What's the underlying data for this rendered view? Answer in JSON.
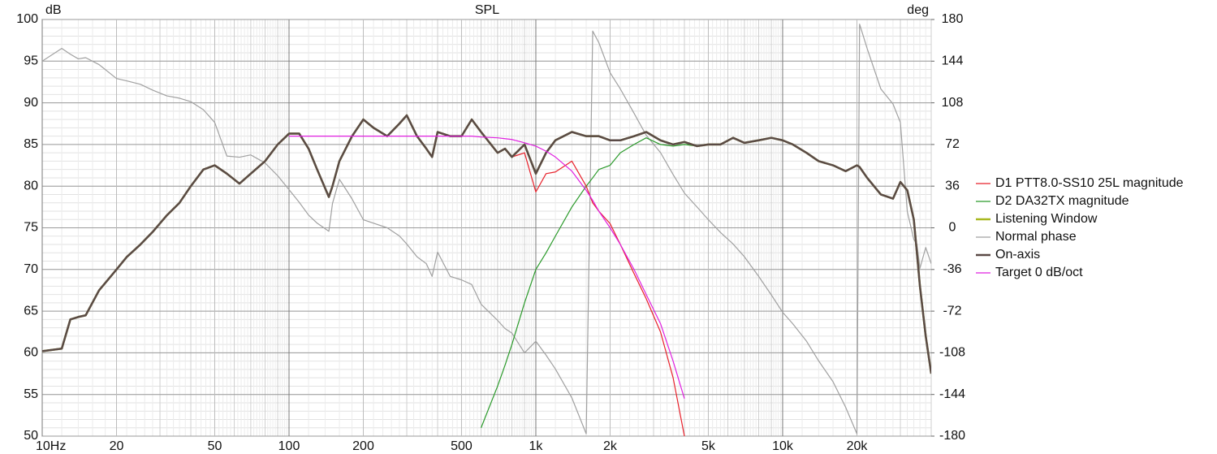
{
  "chart_data": {
    "type": "line",
    "title": "SPL",
    "y_label": "dB",
    "y2_label": "deg",
    "x_scale": "log",
    "grid": true,
    "legend": "right",
    "xlim": [
      10,
      40000
    ],
    "ylim": [
      50,
      100
    ],
    "y2lim": [
      -180,
      180
    ],
    "xticks": [
      {
        "value": 10,
        "label": "10Hz"
      },
      20,
      50,
      100,
      200,
      500,
      {
        "value": 1000,
        "label": "1k"
      },
      {
        "value": 2000,
        "label": "2k"
      },
      {
        "value": 5000,
        "label": "5k"
      },
      {
        "value": 10000,
        "label": "10k"
      },
      {
        "value": 20000,
        "label": "20k"
      }
    ],
    "yticks": [
      50,
      55,
      60,
      65,
      70,
      75,
      80,
      85,
      90,
      95,
      100
    ],
    "y2ticks": [
      -180,
      -144,
      -108,
      -72,
      -36,
      0,
      36,
      72,
      108,
      144,
      180
    ],
    "x": [
      10,
      12,
      13,
      14,
      15,
      17,
      20,
      22,
      25,
      28,
      32,
      36,
      40,
      45,
      50,
      56,
      63,
      70,
      80,
      90,
      100,
      110,
      120,
      130,
      145,
      150,
      160,
      180,
      200,
      220,
      250,
      280,
      300,
      330,
      360,
      380,
      400,
      450,
      500,
      550,
      600,
      700,
      750,
      800,
      900,
      1000,
      1100,
      1200,
      1400,
      1600,
      1700,
      1800,
      2000,
      2200,
      2500,
      2800,
      3200,
      3600,
      4000,
      4500,
      5000,
      5600,
      6300,
      7000,
      8000,
      9000,
      10000,
      11000,
      12500,
      14000,
      16000,
      18000,
      20000,
      20500,
      22000,
      25000,
      28000,
      30000,
      32000,
      34000,
      35000,
      36000,
      38000,
      40000
    ],
    "series": [
      {
        "name": "Normal phase",
        "color": "#a0a0a0",
        "width": 1.2,
        "axis": "y2",
        "values": [
          144,
          155,
          150,
          146,
          147,
          141,
          129,
          127,
          124,
          119,
          114,
          112,
          109,
          102,
          91,
          62,
          61,
          63,
          56,
          45,
          33,
          22,
          11,
          4,
          -3,
          21,
          42,
          25,
          7,
          4,
          0,
          -7,
          -14,
          -25,
          -31,
          -42,
          -21,
          -42,
          -45,
          -49,
          -66,
          -80,
          -87,
          -91,
          -108,
          -98,
          -110,
          -122,
          -147,
          -178,
          170,
          160,
          134,
          120,
          99,
          80,
          65,
          46,
          30,
          18,
          7,
          -4,
          -14,
          -25,
          -42,
          -58,
          -73,
          -83,
          -98,
          -115,
          -133,
          -155,
          -178,
          176,
          155,
          120,
          107,
          91,
          14,
          -10,
          -14,
          -35,
          -17,
          -31
        ]
      },
      {
        "name": "D2 DA32TX magnitude",
        "color": "#2a9a2a",
        "width": 1.2,
        "values": [
          null,
          null,
          null,
          null,
          null,
          null,
          null,
          null,
          null,
          null,
          null,
          null,
          null,
          null,
          null,
          null,
          null,
          null,
          null,
          null,
          null,
          null,
          null,
          null,
          null,
          null,
          null,
          null,
          null,
          null,
          null,
          null,
          null,
          null,
          null,
          null,
          null,
          null,
          null,
          null,
          51,
          56,
          58.5,
          61,
          66,
          70,
          72,
          74,
          77.5,
          80,
          81,
          82,
          82.5,
          84,
          85,
          85.8,
          85,
          84.8,
          85,
          84.8,
          85,
          85,
          85.8,
          85.2,
          85.5,
          85.8,
          85.5,
          85,
          84,
          83,
          82.5,
          81.8,
          82.5,
          82.3,
          81,
          79,
          78.5,
          80.5,
          79.5,
          76,
          72,
          68,
          62,
          57.5
        ]
      },
      {
        "name": "D1 PTT8.0-SS10 25L magnitude",
        "color": "#e8202a",
        "width": 1.2,
        "values": [
          60.2,
          60.5,
          64,
          64.3,
          64.5,
          67.5,
          70,
          71.5,
          73,
          74.5,
          76.5,
          78,
          80,
          82,
          82.5,
          81.5,
          80.3,
          81.5,
          83,
          85,
          86.3,
          86.3,
          84.5,
          82,
          78.7,
          80,
          83,
          86,
          88,
          87,
          86,
          87.5,
          88.5,
          86,
          84.5,
          83.5,
          86.5,
          86,
          86,
          88,
          86.5,
          84,
          84.5,
          83.5,
          84,
          79.3,
          81.5,
          81.7,
          83,
          80,
          78,
          77,
          75.5,
          73,
          69.5,
          66.5,
          62.5,
          57,
          50,
          null,
          null,
          null,
          null,
          null,
          null,
          null,
          null,
          null,
          null,
          null,
          null,
          null,
          null,
          null,
          null,
          null,
          null,
          null,
          null,
          null,
          null,
          null,
          null,
          null
        ]
      },
      {
        "name": "Listening Window",
        "color": "#a8b820",
        "width": 2.5,
        "values": [
          60.2,
          60.5,
          64,
          64.3,
          64.5,
          67.5,
          70,
          71.5,
          73,
          74.5,
          76.5,
          78,
          80,
          82,
          82.5,
          81.5,
          80.3,
          81.5,
          83,
          85,
          86.3,
          86.3,
          84.5,
          82,
          78.7,
          80,
          83,
          86,
          88,
          87,
          86,
          87.5,
          88.5,
          86,
          84.5,
          83.5,
          86.5,
          86,
          86,
          88,
          86.5,
          84,
          84.5,
          83.5,
          85,
          81.5,
          84,
          85.5,
          86.5,
          86,
          86,
          86,
          85.5,
          85.5,
          86,
          86.5,
          85.5,
          85,
          85.3,
          84.8,
          85,
          85,
          85.8,
          85.2,
          85.5,
          85.8,
          85.5,
          85,
          84,
          83,
          82.5,
          81.8,
          82.5,
          82.3,
          81,
          79,
          78.5,
          80.5,
          79.5,
          76,
          72,
          68,
          62,
          57.5
        ]
      },
      {
        "name": "On-axis",
        "color": "#5a4a46",
        "width": 2.5,
        "values": [
          60.2,
          60.5,
          64,
          64.3,
          64.5,
          67.5,
          70,
          71.5,
          73,
          74.5,
          76.5,
          78,
          80,
          82,
          82.5,
          81.5,
          80.3,
          81.5,
          83,
          85,
          86.3,
          86.3,
          84.5,
          82,
          78.7,
          80,
          83,
          86,
          88,
          87,
          86,
          87.5,
          88.5,
          86,
          84.5,
          83.5,
          86.5,
          86,
          86,
          88,
          86.5,
          84,
          84.5,
          83.5,
          85,
          81.5,
          84,
          85.5,
          86.5,
          86,
          86,
          86,
          85.5,
          85.5,
          86,
          86.5,
          85.5,
          85,
          85.3,
          84.8,
          85,
          85,
          85.8,
          85.2,
          85.5,
          85.8,
          85.5,
          85,
          84,
          83,
          82.5,
          81.8,
          82.5,
          82.3,
          81,
          79,
          78.5,
          80.5,
          79.5,
          76,
          72,
          68,
          62,
          57.5
        ]
      },
      {
        "name": "Target 0 dB/oct",
        "color": "#e020e0",
        "width": 1.2,
        "values": [
          null,
          null,
          null,
          null,
          null,
          null,
          null,
          null,
          null,
          null,
          null,
          null,
          null,
          null,
          null,
          null,
          null,
          null,
          null,
          null,
          86,
          86,
          86,
          86,
          86,
          86,
          86,
          86,
          86,
          86,
          86,
          86,
          86,
          86,
          86,
          86,
          86,
          86,
          86,
          86,
          85.9,
          85.8,
          85.7,
          85.6,
          85.2,
          84.8,
          84.2,
          83.5,
          81.8,
          79.5,
          78.3,
          77,
          75,
          73,
          70,
          67,
          63.5,
          59,
          54.5,
          null,
          null,
          null,
          null,
          null,
          null,
          null,
          null,
          null,
          null,
          null,
          null,
          null,
          null,
          null,
          null,
          null,
          null,
          null,
          null,
          null,
          null,
          null,
          null,
          null
        ]
      }
    ]
  }
}
